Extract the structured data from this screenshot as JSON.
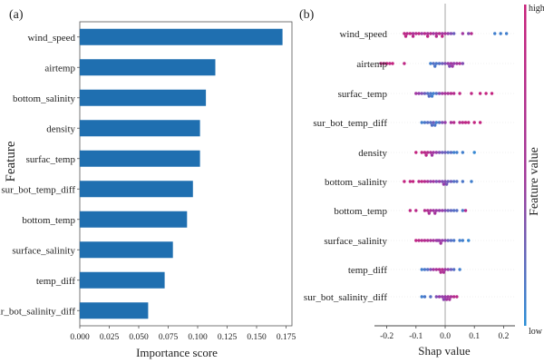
{
  "chart_data": [
    {
      "type": "bar",
      "orientation": "horizontal",
      "panel_label": "(a)",
      "title": "",
      "xlabel": "Importance score",
      "ylabel": "Feature",
      "xlim": [
        0,
        0.18
      ],
      "xticks": [
        "0.000",
        "0.025",
        "0.050",
        "0.075",
        "0.100",
        "0.125",
        "0.150",
        "0.175"
      ],
      "xtick_values": [
        0,
        0.025,
        0.05,
        0.075,
        0.1,
        0.125,
        0.15,
        0.175
      ],
      "bar_color": "#1f6fb0",
      "categories": [
        "wind_speed",
        "airtemp",
        "bottom_salinity",
        "density",
        "surfac_temp",
        "sur_bot_temp_diff",
        "bottom_temp",
        "surface_salinity",
        "temp_diff",
        "sur_bot_salinity_diff"
      ],
      "values": [
        0.172,
        0.115,
        0.107,
        0.102,
        0.102,
        0.096,
        0.091,
        0.079,
        0.072,
        0.058
      ]
    },
    {
      "type": "scatter",
      "subtype": "shap-beeswarm",
      "panel_label": "(b)",
      "xlabel": "Shap value",
      "colorbar_label": "Feature value",
      "colorbar_high": "high",
      "colorbar_low": "low",
      "color_high": "#c8207a",
      "color_low": "#2a8fd6",
      "xlim": [
        -0.25,
        0.24
      ],
      "xticks": [
        "-0.2",
        "-0.1",
        "0.0",
        "0.1",
        "0.2"
      ],
      "xtick_values": [
        -0.2,
        -0.1,
        0.0,
        0.1,
        0.2
      ],
      "features": [
        {
          "name": "wind_speed",
          "points": [
            [
              -0.14,
              0.9
            ],
            [
              -0.13,
              0.8
            ],
            [
              -0.12,
              0.9
            ],
            [
              -0.11,
              0.7
            ],
            [
              -0.1,
              0.8
            ],
            [
              -0.09,
              0.9
            ],
            [
              -0.08,
              0.6
            ],
            [
              -0.07,
              0.8
            ],
            [
              -0.06,
              0.7
            ],
            [
              -0.05,
              0.8
            ],
            [
              -0.04,
              0.6
            ],
            [
              -0.03,
              0.7
            ],
            [
              -0.02,
              0.8
            ],
            [
              -0.01,
              0.6
            ],
            [
              0.0,
              0.7
            ],
            [
              0.01,
              0.5
            ],
            [
              0.02,
              0.4
            ],
            [
              0.03,
              0.3
            ],
            [
              0.06,
              0.6
            ],
            [
              0.08,
              0.4
            ],
            [
              0.09,
              0.8
            ],
            [
              0.17,
              0.1
            ],
            [
              0.19,
              0.1
            ],
            [
              0.21,
              0.1
            ],
            [
              -0.135,
              0.9
            ],
            [
              -0.11,
              0.85
            ],
            [
              -0.06,
              0.9
            ],
            [
              -0.03,
              0.8
            ],
            [
              -0.01,
              0.9
            ]
          ]
        },
        {
          "name": "airtemp",
          "points": [
            [
              -0.22,
              0.95
            ],
            [
              -0.21,
              0.9
            ],
            [
              -0.2,
              0.95
            ],
            [
              -0.19,
              0.9
            ],
            [
              -0.18,
              0.95
            ],
            [
              -0.14,
              0.9
            ],
            [
              -0.05,
              0.1
            ],
            [
              -0.04,
              0.2
            ],
            [
              -0.03,
              0.15
            ],
            [
              -0.02,
              0.2
            ],
            [
              -0.01,
              0.3
            ],
            [
              0.0,
              0.4
            ],
            [
              0.01,
              0.5
            ],
            [
              0.02,
              0.6
            ],
            [
              0.03,
              0.5
            ],
            [
              0.04,
              0.6
            ],
            [
              0.05,
              0.7
            ],
            [
              0.06,
              0.4
            ],
            [
              -0.035,
              0.15
            ],
            [
              0.015,
              0.4
            ],
            [
              0.025,
              0.55
            ]
          ]
        },
        {
          "name": "surfac_temp",
          "points": [
            [
              -0.1,
              0.6
            ],
            [
              -0.09,
              0.5
            ],
            [
              -0.08,
              0.4
            ],
            [
              -0.07,
              0.3
            ],
            [
              -0.06,
              0.2
            ],
            [
              -0.05,
              0.15
            ],
            [
              -0.04,
              0.1
            ],
            [
              -0.03,
              0.2
            ],
            [
              -0.02,
              0.4
            ],
            [
              -0.01,
              0.6
            ],
            [
              0.0,
              0.7
            ],
            [
              0.01,
              0.7
            ],
            [
              0.02,
              0.8
            ],
            [
              0.03,
              0.8
            ],
            [
              0.05,
              0.9
            ],
            [
              0.09,
              0.9
            ],
            [
              0.12,
              0.95
            ],
            [
              0.14,
              0.95
            ],
            [
              0.16,
              0.95
            ],
            [
              -0.045,
              0.1
            ],
            [
              -0.055,
              0.2
            ]
          ]
        },
        {
          "name": "sur_bot_temp_diff",
          "points": [
            [
              -0.08,
              0.1
            ],
            [
              -0.07,
              0.15
            ],
            [
              -0.06,
              0.2
            ],
            [
              -0.05,
              0.2
            ],
            [
              -0.04,
              0.3
            ],
            [
              -0.03,
              0.1
            ],
            [
              -0.02,
              0.2
            ],
            [
              -0.01,
              0.4
            ],
            [
              0.0,
              0.5
            ],
            [
              0.02,
              0.7
            ],
            [
              0.03,
              0.8
            ],
            [
              0.05,
              0.8
            ],
            [
              0.06,
              0.85
            ],
            [
              0.07,
              0.9
            ],
            [
              0.08,
              0.9
            ],
            [
              0.1,
              0.95
            ],
            [
              0.12,
              0.95
            ],
            [
              -0.045,
              0.2
            ],
            [
              -0.035,
              0.15
            ]
          ]
        },
        {
          "name": "density",
          "points": [
            [
              -0.1,
              0.95
            ],
            [
              -0.08,
              0.9
            ],
            [
              -0.07,
              0.85
            ],
            [
              -0.06,
              0.8
            ],
            [
              -0.05,
              0.7
            ],
            [
              -0.04,
              0.6
            ],
            [
              -0.03,
              0.5
            ],
            [
              -0.02,
              0.4
            ],
            [
              -0.01,
              0.3
            ],
            [
              0.0,
              0.3
            ],
            [
              0.01,
              0.2
            ],
            [
              0.02,
              0.2
            ],
            [
              0.03,
              0.1
            ],
            [
              0.04,
              0.1
            ],
            [
              0.06,
              0.1
            ],
            [
              0.1,
              0.05
            ],
            [
              -0.065,
              0.85
            ],
            [
              -0.045,
              0.6
            ]
          ]
        },
        {
          "name": "bottom_salinity",
          "points": [
            [
              -0.14,
              0.95
            ],
            [
              -0.12,
              0.9
            ],
            [
              -0.11,
              0.95
            ],
            [
              -0.09,
              0.85
            ],
            [
              -0.08,
              0.9
            ],
            [
              -0.07,
              0.8
            ],
            [
              -0.06,
              0.7
            ],
            [
              -0.05,
              0.5
            ],
            [
              -0.04,
              0.6
            ],
            [
              -0.03,
              0.4
            ],
            [
              -0.02,
              0.5
            ],
            [
              -0.01,
              0.4
            ],
            [
              0.0,
              0.4
            ],
            [
              0.01,
              0.3
            ],
            [
              0.02,
              0.3
            ],
            [
              0.03,
              0.2
            ],
            [
              0.04,
              0.2
            ],
            [
              0.06,
              0.15
            ],
            [
              0.09,
              0.1
            ],
            [
              -0.005,
              0.5
            ],
            [
              0.005,
              0.35
            ]
          ]
        },
        {
          "name": "bottom_temp",
          "points": [
            [
              -0.12,
              0.9
            ],
            [
              -0.1,
              0.85
            ],
            [
              -0.07,
              0.8
            ],
            [
              -0.06,
              0.75
            ],
            [
              -0.05,
              0.7
            ],
            [
              -0.04,
              0.6
            ],
            [
              -0.03,
              0.55
            ],
            [
              -0.02,
              0.5
            ],
            [
              -0.01,
              0.5
            ],
            [
              0.0,
              0.4
            ],
            [
              0.01,
              0.3
            ],
            [
              0.02,
              0.25
            ],
            [
              0.03,
              0.2
            ],
            [
              0.04,
              0.2
            ],
            [
              0.06,
              0.15
            ],
            [
              0.07,
              0.8
            ],
            [
              -0.055,
              0.7
            ],
            [
              -0.035,
              0.65
            ]
          ]
        },
        {
          "name": "surface_salinity",
          "points": [
            [
              -0.1,
              0.9
            ],
            [
              -0.09,
              0.85
            ],
            [
              -0.08,
              0.8
            ],
            [
              -0.07,
              0.8
            ],
            [
              -0.06,
              0.75
            ],
            [
              -0.05,
              0.7
            ],
            [
              -0.04,
              0.65
            ],
            [
              -0.03,
              0.6
            ],
            [
              -0.02,
              0.55
            ],
            [
              -0.01,
              0.5
            ],
            [
              0.0,
              0.45
            ],
            [
              0.01,
              0.3
            ],
            [
              0.02,
              0.2
            ],
            [
              0.03,
              0.15
            ],
            [
              0.05,
              0.1
            ],
            [
              0.06,
              0.1
            ],
            [
              0.08,
              0.05
            ],
            [
              -0.015,
              0.6
            ],
            [
              -0.025,
              0.5
            ]
          ]
        },
        {
          "name": "temp_diff",
          "points": [
            [
              -0.08,
              0.1
            ],
            [
              -0.07,
              0.15
            ],
            [
              -0.06,
              0.2
            ],
            [
              -0.05,
              0.4
            ],
            [
              -0.04,
              0.6
            ],
            [
              -0.03,
              0.7
            ],
            [
              -0.02,
              0.75
            ],
            [
              -0.01,
              0.8
            ],
            [
              0.0,
              0.6
            ],
            [
              0.01,
              0.5
            ],
            [
              0.02,
              0.3
            ],
            [
              0.03,
              0.2
            ],
            [
              0.05,
              0.1
            ],
            [
              -0.015,
              0.75
            ],
            [
              -0.005,
              0.7
            ]
          ]
        },
        {
          "name": "sur_bot_salinity_diff",
          "points": [
            [
              -0.08,
              0.1
            ],
            [
              -0.07,
              0.15
            ],
            [
              -0.05,
              0.2
            ],
            [
              -0.03,
              0.4
            ],
            [
              -0.02,
              0.5
            ],
            [
              -0.01,
              0.5
            ],
            [
              0.0,
              0.55
            ],
            [
              0.01,
              0.6
            ],
            [
              0.02,
              0.7
            ],
            [
              0.03,
              0.8
            ],
            [
              0.04,
              0.85
            ],
            [
              -0.005,
              0.45
            ],
            [
              0.005,
              0.6
            ],
            [
              0.015,
              0.65
            ]
          ]
        }
      ]
    }
  ]
}
